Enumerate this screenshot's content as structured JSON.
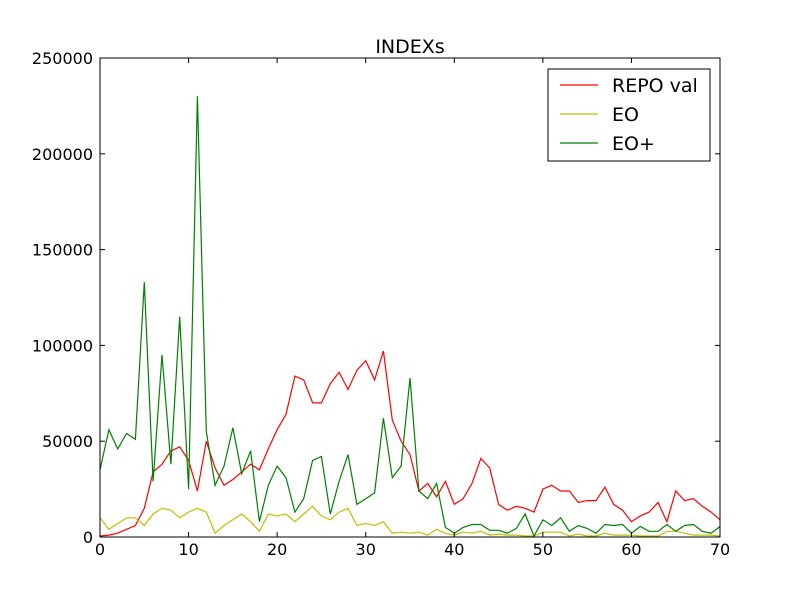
{
  "chart_data": {
    "type": "line",
    "title": "INDEXs",
    "xlabel": "",
    "ylabel": "",
    "xlim": [
      0,
      70
    ],
    "ylim": [
      0,
      250000
    ],
    "x_ticks": [
      0,
      10,
      20,
      30,
      40,
      50,
      60,
      70
    ],
    "y_ticks": [
      0,
      50000,
      100000,
      150000,
      200000,
      250000
    ],
    "grid": false,
    "legend": "top-right",
    "x": [
      0,
      1,
      2,
      3,
      4,
      5,
      6,
      7,
      8,
      9,
      10,
      11,
      12,
      13,
      14,
      15,
      16,
      17,
      18,
      19,
      20,
      21,
      22,
      23,
      24,
      25,
      26,
      27,
      28,
      29,
      30,
      31,
      32,
      33,
      34,
      35,
      36,
      37,
      38,
      39,
      40,
      41,
      42,
      43,
      44,
      45,
      46,
      47,
      48,
      49,
      50,
      51,
      52,
      53,
      54,
      55,
      56,
      57,
      58,
      59,
      60,
      61,
      62,
      63,
      64,
      65,
      66,
      67,
      68,
      69,
      70
    ],
    "series": [
      {
        "name": "REPO val",
        "color": "#ff0000",
        "values": [
          500,
          1000,
          2000,
          4000,
          6000,
          15000,
          34000,
          38000,
          45000,
          47000,
          40000,
          24000,
          50000,
          36000,
          27000,
          30000,
          34000,
          38000,
          35000,
          46000,
          56000,
          64000,
          84000,
          82000,
          70000,
          70000,
          80000,
          86000,
          77000,
          87000,
          92000,
          82000,
          97000,
          61000,
          50000,
          43000,
          24000,
          28000,
          21000,
          29000,
          17000,
          20000,
          28000,
          41000,
          36000,
          17000,
          14000,
          16000,
          15000,
          13000,
          25000,
          27000,
          24000,
          24000,
          18000,
          19000,
          19000,
          26000,
          17000,
          14000,
          8000,
          11000,
          13000,
          18000,
          8000,
          24000,
          19000,
          20000,
          16000,
          13000,
          9000
        ]
      },
      {
        "name": "EO",
        "color": "#bfbf00",
        "values": [
          10000,
          4000,
          7000,
          10000,
          10000,
          6000,
          12000,
          15000,
          14000,
          10000,
          13000,
          15000,
          13000,
          2000,
          6000,
          9000,
          12000,
          8000,
          3000,
          12000,
          11000,
          12000,
          8000,
          12000,
          16000,
          11000,
          9000,
          13000,
          15000,
          6000,
          7000,
          6000,
          8000,
          2000,
          2500,
          2000,
          2500,
          1000,
          4000,
          2000,
          1000,
          2500,
          2000,
          3000,
          1000,
          1500,
          1000,
          1000,
          500,
          500,
          2500,
          2500,
          2500,
          500,
          1500,
          500,
          500,
          2000,
          1000,
          1000,
          1000,
          500,
          500,
          500,
          3000,
          3000,
          2000,
          1000,
          1000,
          1000,
          500
        ]
      },
      {
        "name": "EO+",
        "color": "#008000",
        "values": [
          35000,
          56000,
          46000,
          54000,
          51000,
          133000,
          29000,
          95000,
          38000,
          115000,
          25000,
          230000,
          55000,
          27000,
          37000,
          57000,
          33000,
          45000,
          8000,
          27000,
          37000,
          31000,
          13000,
          20000,
          40000,
          42000,
          12000,
          29000,
          43000,
          17000,
          20000,
          23000,
          62000,
          31000,
          37000,
          83000,
          24000,
          20000,
          28000,
          5000,
          2000,
          5000,
          6500,
          6500,
          3500,
          3500,
          2000,
          4500,
          12000,
          500,
          9000,
          6000,
          10000,
          3000,
          6000,
          4500,
          2000,
          6500,
          6000,
          6500,
          2000,
          5500,
          3000,
          3000,
          6500,
          3000,
          6000,
          6500,
          3000,
          2000,
          5500
        ]
      }
    ]
  }
}
